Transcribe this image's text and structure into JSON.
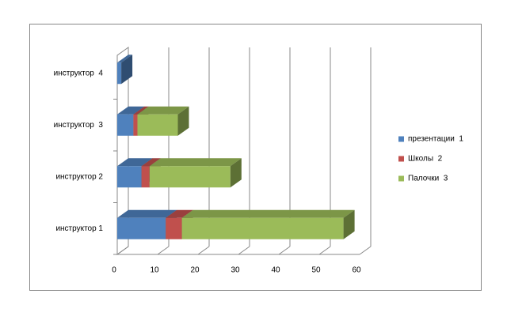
{
  "chart_data": {
    "type": "bar3d_stacked_horizontal",
    "categories": [
      "инструктор 1",
      "инструктор 2",
      "инструктор  3",
      "инструктор  4"
    ],
    "series": [
      {
        "name": "презентации  1",
        "color": "#4f81bd",
        "values": [
          12,
          6,
          4,
          1
        ]
      },
      {
        "name": "Школы  2",
        "color": "#c0504d",
        "values": [
          4,
          2,
          1,
          0
        ]
      },
      {
        "name": "Палочки  3",
        "color": "#9bbb59",
        "values": [
          40,
          20,
          10,
          0
        ]
      }
    ],
    "xlim": [
      0,
      60
    ],
    "xticks": [
      0,
      10,
      20,
      30,
      40,
      50,
      60
    ],
    "grid": true,
    "legend": "right"
  }
}
